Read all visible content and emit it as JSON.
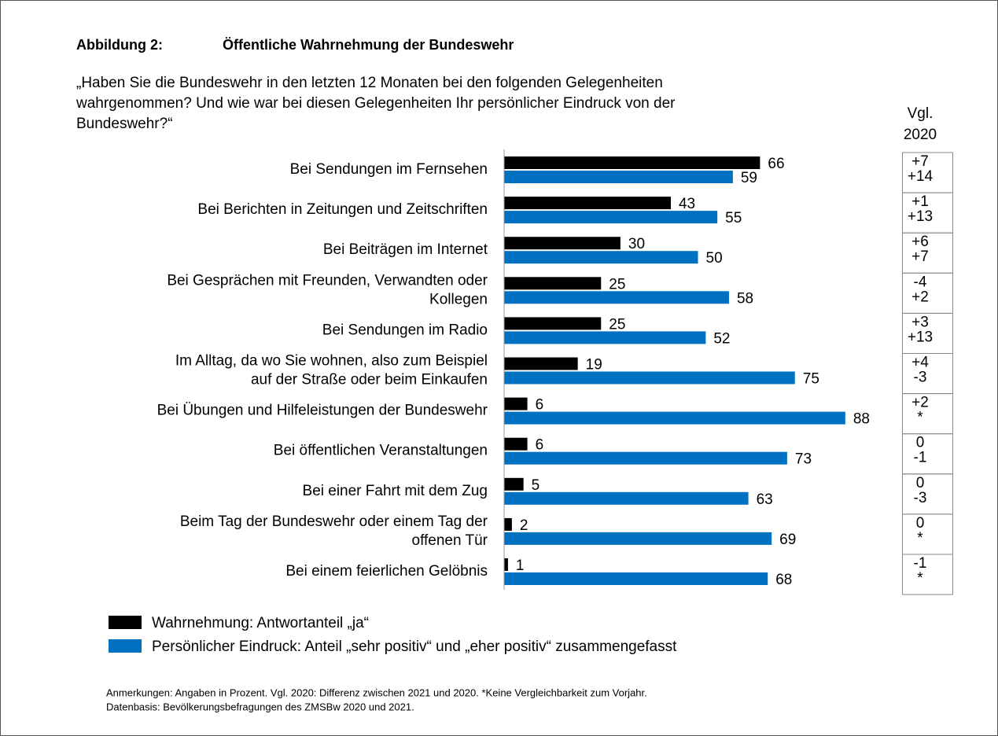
{
  "chart_data": {
    "type": "bar",
    "orientation": "horizontal",
    "title_label": "Abbildung 2:",
    "title": "Öffentliche Wahrnehmung der Bundeswehr",
    "subtitle": [
      "„Haben Sie die Bundeswehr in den letzten 12 Monaten bei den folgenden Gelegenheiten",
      "wahrgenommen? Und wie war bei diesen Gelegenheiten Ihr persönlicher Eindruck von der",
      "Bundeswehr?“"
    ],
    "categories": [
      [
        "Bei Sendungen im Fernsehen"
      ],
      [
        "Bei Berichten in Zeitungen und Zeitschriften"
      ],
      [
        "Bei Beiträgen im Internet"
      ],
      [
        "Bei Gesprächen mit Freunden, Verwandten oder",
        "Kollegen"
      ],
      [
        "Bei Sendungen im Radio"
      ],
      [
        "Im Alltag, da wo Sie wohnen, also zum Beispiel",
        "auf der Straße oder beim Einkaufen"
      ],
      [
        "Bei Übungen und Hilfeleistungen der Bundeswehr"
      ],
      [
        "Bei öffentlichen Veranstaltungen"
      ],
      [
        "Bei einer Fahrt mit dem Zug"
      ],
      [
        "Beim Tag der Bundeswehr oder einem Tag der",
        "offenen Tür"
      ],
      [
        "Bei einem feierlichen Gelöbnis"
      ]
    ],
    "series": [
      {
        "name": "Wahrnehmung: Antwortanteil „ja“",
        "color": "#000000",
        "values": [
          66,
          43,
          30,
          25,
          25,
          19,
          6,
          6,
          5,
          2,
          1
        ]
      },
      {
        "name": "Persönlicher Eindruck: Anteil „sehr positiv“ und „eher positiv“ zusammengefasst",
        "color": "#0070c0",
        "values": [
          59,
          55,
          50,
          58,
          52,
          75,
          88,
          73,
          63,
          69,
          68
        ]
      }
    ],
    "xlim": [
      0,
      100
    ],
    "comparison": {
      "title": [
        "Vgl.",
        "2020"
      ],
      "values": [
        [
          "+7",
          "+14"
        ],
        [
          "+1",
          "+13"
        ],
        [
          "+6",
          "+7"
        ],
        [
          "-4",
          "+2"
        ],
        [
          "+3",
          "+13"
        ],
        [
          "+4",
          "-3"
        ],
        [
          "+2",
          "*"
        ],
        [
          "0",
          "-1"
        ],
        [
          "0",
          "-3"
        ],
        [
          "0",
          "*"
        ],
        [
          "-1",
          "*"
        ]
      ]
    },
    "notes": [
      "Anmerkungen: Angaben in Prozent. Vgl. 2020: Differenz zwischen 2021 und 2020. *Keine Vergleichbarkeit zum Vorjahr.",
      "Datenbasis: Bevölkerungsbefragungen des ZMSBw 2020 und 2021."
    ]
  }
}
